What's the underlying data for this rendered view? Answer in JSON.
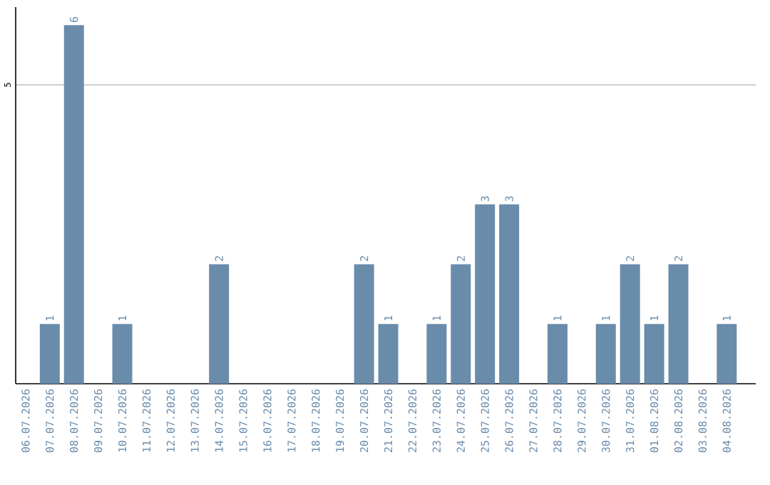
{
  "chart_data": {
    "type": "bar",
    "color": "#6a8cab",
    "categories": [
      "06.07.2026",
      "07.07.2026",
      "08.07.2026",
      "09.07.2026",
      "10.07.2026",
      "11.07.2026",
      "12.07.2026",
      "13.07.2026",
      "14.07.2026",
      "15.07.2026",
      "16.07.2026",
      "17.07.2026",
      "18.07.2026",
      "19.07.2026",
      "20.07.2026",
      "21.07.2026",
      "22.07.2026",
      "23.07.2026",
      "24.07.2026",
      "25.07.2026",
      "26.07.2026",
      "27.07.2026",
      "28.07.2026",
      "29.07.2026",
      "30.07.2026",
      "31.07.2026",
      "01.08.2026",
      "02.08.2026",
      "03.08.2026",
      "04.08.2026"
    ],
    "values": [
      0,
      1,
      6,
      0,
      1,
      0,
      0,
      0,
      2,
      0,
      0,
      0,
      0,
      0,
      2,
      1,
      0,
      1,
      2,
      3,
      3,
      0,
      1,
      0,
      1,
      2,
      1,
      2,
      0,
      1
    ],
    "value_labels": [
      null,
      "1",
      "6",
      null,
      "1",
      null,
      null,
      null,
      "2",
      null,
      null,
      null,
      null,
      null,
      "2",
      "1",
      null,
      "1",
      "2",
      "3",
      "3",
      null,
      "1",
      null,
      "1",
      "2",
      "1",
      "2",
      null,
      "1"
    ],
    "ylim": [
      0,
      6.3
    ],
    "yticks": [
      5
    ],
    "grid": "y"
  }
}
